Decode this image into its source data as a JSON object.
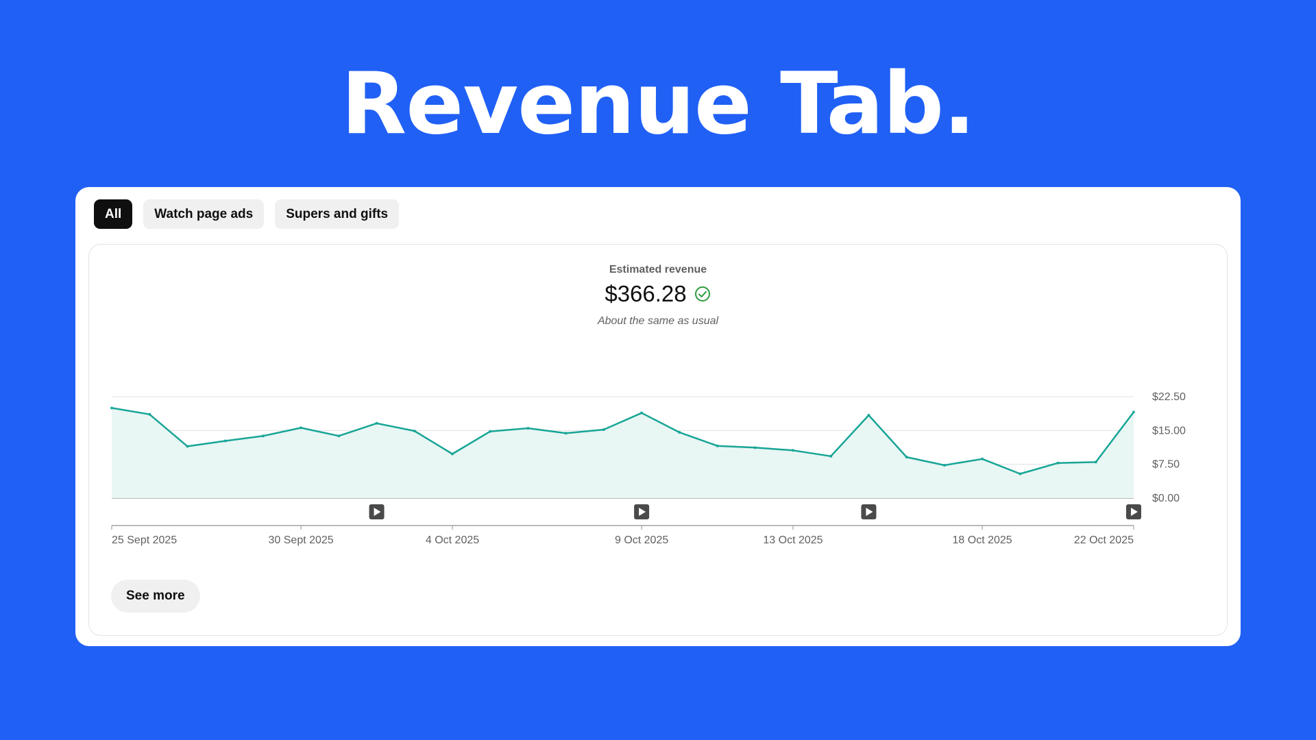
{
  "headline": "Revenue Tab.",
  "tabs": [
    {
      "label": "All",
      "active": true
    },
    {
      "label": "Watch page ads",
      "active": false
    },
    {
      "label": "Supers and gifts",
      "active": false
    }
  ],
  "metric": {
    "label": "Estimated revenue",
    "value": "$366.28",
    "status_icon": "check-circle-icon",
    "note": "About the same as usual"
  },
  "see_more_label": "See more",
  "colors": {
    "background": "#2060f5",
    "line": "#17a596",
    "area": "#e8f6f4",
    "active_tab": "#0f0f0f"
  },
  "chart_data": {
    "type": "area",
    "x": [
      "25 Sept 2025",
      "26 Sept 2025",
      "27 Sept 2025",
      "28 Sept 2025",
      "29 Sept 2025",
      "30 Sept 2025",
      "1 Oct 2025",
      "2 Oct 2025",
      "3 Oct 2025",
      "4 Oct 2025",
      "5 Oct 2025",
      "6 Oct 2025",
      "7 Oct 2025",
      "8 Oct 2025",
      "9 Oct 2025",
      "10 Oct 2025",
      "11 Oct 2025",
      "12 Oct 2025",
      "13 Oct 2025",
      "14 Oct 2025",
      "15 Oct 2025",
      "16 Oct 2025",
      "17 Oct 2025",
      "18 Oct 2025",
      "19 Oct 2025",
      "20 Oct 2025",
      "21 Oct 2025",
      "22 Oct 2025"
    ],
    "series": [
      {
        "values": [
          20.0,
          18.6,
          11.5,
          12.7,
          13.8,
          15.6,
          13.8,
          16.6,
          14.9,
          9.8,
          14.8,
          15.5,
          14.4,
          15.2,
          18.9,
          14.6,
          11.6,
          11.2,
          10.6,
          9.3,
          18.4,
          9.1,
          7.3,
          8.7,
          5.4,
          7.8,
          8.0,
          19.1
        ]
      }
    ],
    "x_tick_labels": [
      "25 Sept 2025",
      "30 Sept 2025",
      "4 Oct 2025",
      "9 Oct 2025",
      "13 Oct 2025",
      "18 Oct 2025",
      "22 Oct 2025"
    ],
    "y_tick_labels": [
      "$22.50",
      "$15.00",
      "$7.50",
      "$0.00"
    ],
    "y_ticks": [
      22.5,
      15,
      7.5,
      0
    ],
    "ylim": [
      0,
      22.5
    ],
    "video_markers_x": [
      "2 Oct 2025",
      "9 Oct 2025",
      "15 Oct 2025",
      "22 Oct 2025"
    ],
    "grid": true,
    "y_axis_side": "right"
  }
}
